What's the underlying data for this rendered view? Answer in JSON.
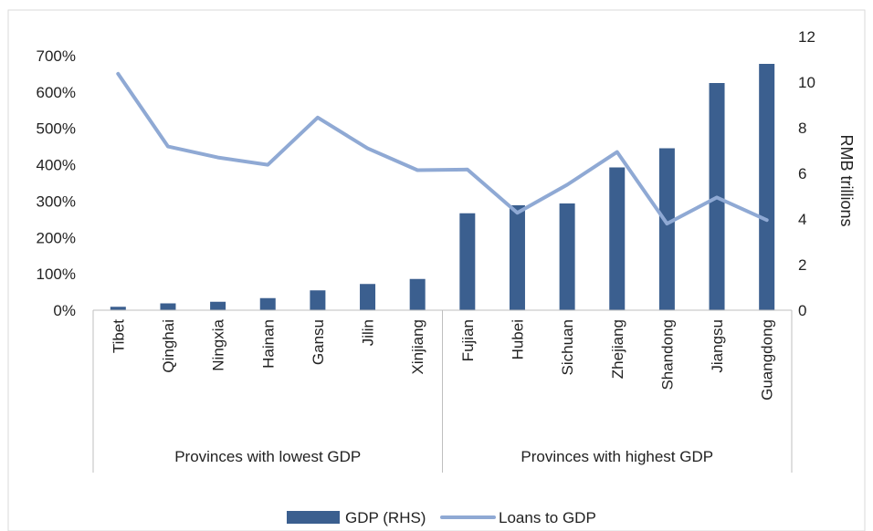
{
  "chart_data": {
    "type": "bar",
    "categories": [
      "Tibet",
      "Qinghai",
      "Ningxia",
      "Hainan",
      "Gansu",
      "Jilin",
      "Xinjiang",
      "Fujian",
      "Hubei",
      "Sichuan",
      "Zhejiang",
      "Shandong",
      "Jiangsu",
      "Guangdong"
    ],
    "groups": [
      {
        "label": "Provinces with lowest GDP",
        "start": 0,
        "end": 6
      },
      {
        "label": "Provinces with highest GDP",
        "start": 7,
        "end": 13
      }
    ],
    "series": [
      {
        "name": "GDP (RHS)",
        "type": "bar",
        "axis": "right",
        "color": "#3b5f8f",
        "values": [
          0.15,
          0.3,
          0.37,
          0.53,
          0.87,
          1.15,
          1.37,
          4.25,
          4.6,
          4.68,
          6.26,
          7.1,
          9.96,
          10.8
        ]
      },
      {
        "name": "Loans to GDP",
        "type": "line",
        "axis": "left",
        "color": "#8fa9d4",
        "values": [
          6.5,
          4.5,
          4.2,
          4.0,
          5.3,
          4.45,
          3.85,
          3.87,
          2.68,
          3.45,
          4.35,
          2.38,
          3.1,
          2.48
        ]
      }
    ],
    "left_axis": {
      "ylim": [
        0,
        7
      ],
      "ticks": [
        "0%",
        "100%",
        "200%",
        "300%",
        "400%",
        "500%",
        "600%",
        "700%"
      ]
    },
    "right_axis": {
      "ylim": [
        0,
        12
      ],
      "ticks": [
        "0",
        "2",
        "4",
        "6",
        "8",
        "10",
        "12"
      ],
      "label": "RMB trillions"
    },
    "grid": false,
    "legend": {
      "position": "bottom"
    }
  }
}
